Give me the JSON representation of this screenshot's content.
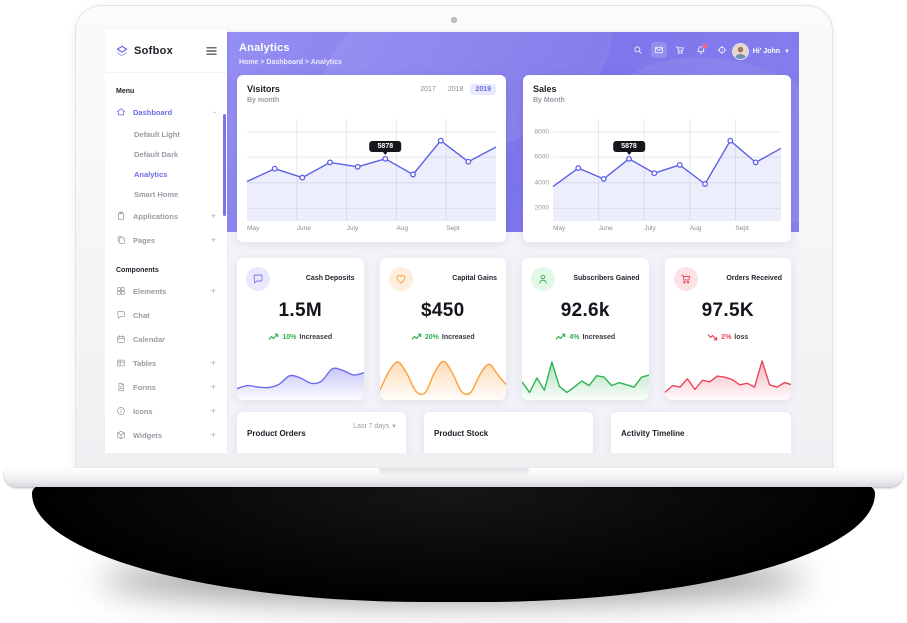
{
  "theme": {
    "accent": "#7a74ea",
    "header_gradient": [
      "#968ff2",
      "#7d75ea"
    ],
    "positive": "#2fb350",
    "negative": "#e8465c"
  },
  "sidebar": {
    "logo_text": "Sofbox",
    "items": [
      {
        "type": "section",
        "label": "Menu"
      },
      {
        "type": "item",
        "icon": "home",
        "label": "Dashboard",
        "suffix": "-",
        "active": true
      },
      {
        "type": "sub",
        "label": "Default Light"
      },
      {
        "type": "sub",
        "label": "Default Dark"
      },
      {
        "type": "sub",
        "label": "Analytics",
        "active": true
      },
      {
        "type": "sub",
        "label": "Smart Home"
      },
      {
        "type": "item",
        "icon": "clipboard",
        "label": "Applications",
        "suffix": "+"
      },
      {
        "type": "item",
        "icon": "pages",
        "label": "Pages",
        "suffix": "+"
      },
      {
        "type": "section",
        "label": "Components"
      },
      {
        "type": "item",
        "icon": "grid",
        "label": "Elements",
        "suffix": "+"
      },
      {
        "type": "item",
        "icon": "chat",
        "label": "Chat"
      },
      {
        "type": "item",
        "icon": "calendar",
        "label": "Calendar"
      },
      {
        "type": "item",
        "icon": "table",
        "label": "Tables",
        "suffix": "+"
      },
      {
        "type": "item",
        "icon": "file",
        "label": "Forms",
        "suffix": "+"
      },
      {
        "type": "item",
        "icon": "info",
        "label": "Icons",
        "suffix": "+"
      },
      {
        "type": "item",
        "icon": "widget",
        "label": "Widgets",
        "suffix": "+"
      }
    ]
  },
  "header": {
    "title": "Analytics",
    "breadcrumb_text": "Home > Dashboard > Analytics",
    "user_greeting": "Hi' John",
    "actions": [
      {
        "icon": "search"
      },
      {
        "icon": "mail",
        "highlight": true
      },
      {
        "icon": "cart"
      },
      {
        "icon": "bell",
        "badge": true
      },
      {
        "icon": "locate"
      }
    ]
  },
  "chart_data": [
    {
      "id": "visitors",
      "type": "line",
      "title": "Visitors",
      "subtitle": "By month",
      "tabs": [
        "2017",
        "2018",
        "2019"
      ],
      "active_tab": "2019",
      "x": [
        "May",
        "June",
        "July",
        "Aug",
        "Sept"
      ],
      "values": [
        4100,
        5100,
        4400,
        5600,
        5250,
        5878,
        4650,
        7300,
        5650,
        6800
      ],
      "ylim": [
        1000,
        9000
      ],
      "y_gridlines": [
        2000,
        4000,
        6000,
        8000
      ],
      "show_y_labels": false,
      "tooltip": {
        "index": 5,
        "label": "5878"
      },
      "line_color": "#5b61e5",
      "legend": "none",
      "grid": true
    },
    {
      "id": "sales",
      "type": "line",
      "title": "Sales",
      "subtitle": "By Month",
      "x": [
        "May",
        "June",
        "July",
        "Aug",
        "Sept"
      ],
      "values": [
        3700,
        5150,
        4300,
        5878,
        4750,
        5400,
        3900,
        7300,
        5600,
        6700
      ],
      "ylim": [
        1000,
        9000
      ],
      "y_gridlines": [
        2000,
        4000,
        6000,
        8000
      ],
      "show_y_labels": true,
      "tooltip": {
        "index": 3,
        "label": "5878"
      },
      "line_color": "#5b61e5",
      "legend": "none",
      "grid": true
    },
    {
      "id": "spark-cash",
      "type": "area",
      "smooth": true,
      "color": "#6f6cf0",
      "values": [
        22,
        30,
        26,
        25,
        34,
        56,
        50,
        36,
        42,
        74,
        70,
        58,
        64
      ]
    },
    {
      "id": "spark-gains",
      "type": "area",
      "smooth": true,
      "color": "#f9a03c",
      "values": [
        18,
        68,
        92,
        60,
        14,
        12,
        64,
        94,
        62,
        14,
        12,
        58,
        86,
        58,
        30
      ]
    },
    {
      "id": "spark-subs",
      "type": "area",
      "smooth": false,
      "color": "#2fb350",
      "values": [
        40,
        12,
        50,
        18,
        92,
        28,
        12,
        26,
        42,
        30,
        56,
        52,
        30,
        38,
        32,
        26,
        52,
        58
      ]
    },
    {
      "id": "spark-orders",
      "type": "area",
      "smooth": false,
      "color": "#e8465c",
      "values": [
        12,
        30,
        26,
        48,
        20,
        44,
        40,
        55,
        52,
        46,
        32,
        36,
        26,
        95,
        32,
        26,
        38,
        32
      ]
    }
  ],
  "stats": [
    {
      "icon": "chat",
      "icon_color": "#7b78ee",
      "icon_bg": "#e9e8fc",
      "title": "Cash Deposits",
      "value": "1.5M",
      "change_pct": "10%",
      "change_word": "Increased",
      "trend": "up",
      "spark": "spark-cash"
    },
    {
      "icon": "heart",
      "icon_color": "#f9a03c",
      "icon_bg": "#fdeede",
      "title": "Capital Gains",
      "value": "$450",
      "change_pct": "20%",
      "change_word": "Increased",
      "trend": "up",
      "spark": "spark-gains"
    },
    {
      "icon": "person",
      "icon_color": "#2fb350",
      "icon_bg": "#e3f7e6",
      "title": "Subscribers Gained",
      "value": "92.6k",
      "change_pct": "4%",
      "change_word": "Increased",
      "trend": "up",
      "spark": "spark-subs"
    },
    {
      "icon": "cart",
      "icon_color": "#e8465c",
      "icon_bg": "#fce1e5",
      "title": "Orders Received",
      "value": "97.5K",
      "change_pct": "2%",
      "change_word": "loss",
      "trend": "down",
      "spark": "spark-orders"
    }
  ],
  "bottom_cards": [
    {
      "title": "Product Orders",
      "filter": "Last 7 days"
    },
    {
      "title": "Product Stock"
    },
    {
      "title": "Activity Timeline"
    }
  ]
}
